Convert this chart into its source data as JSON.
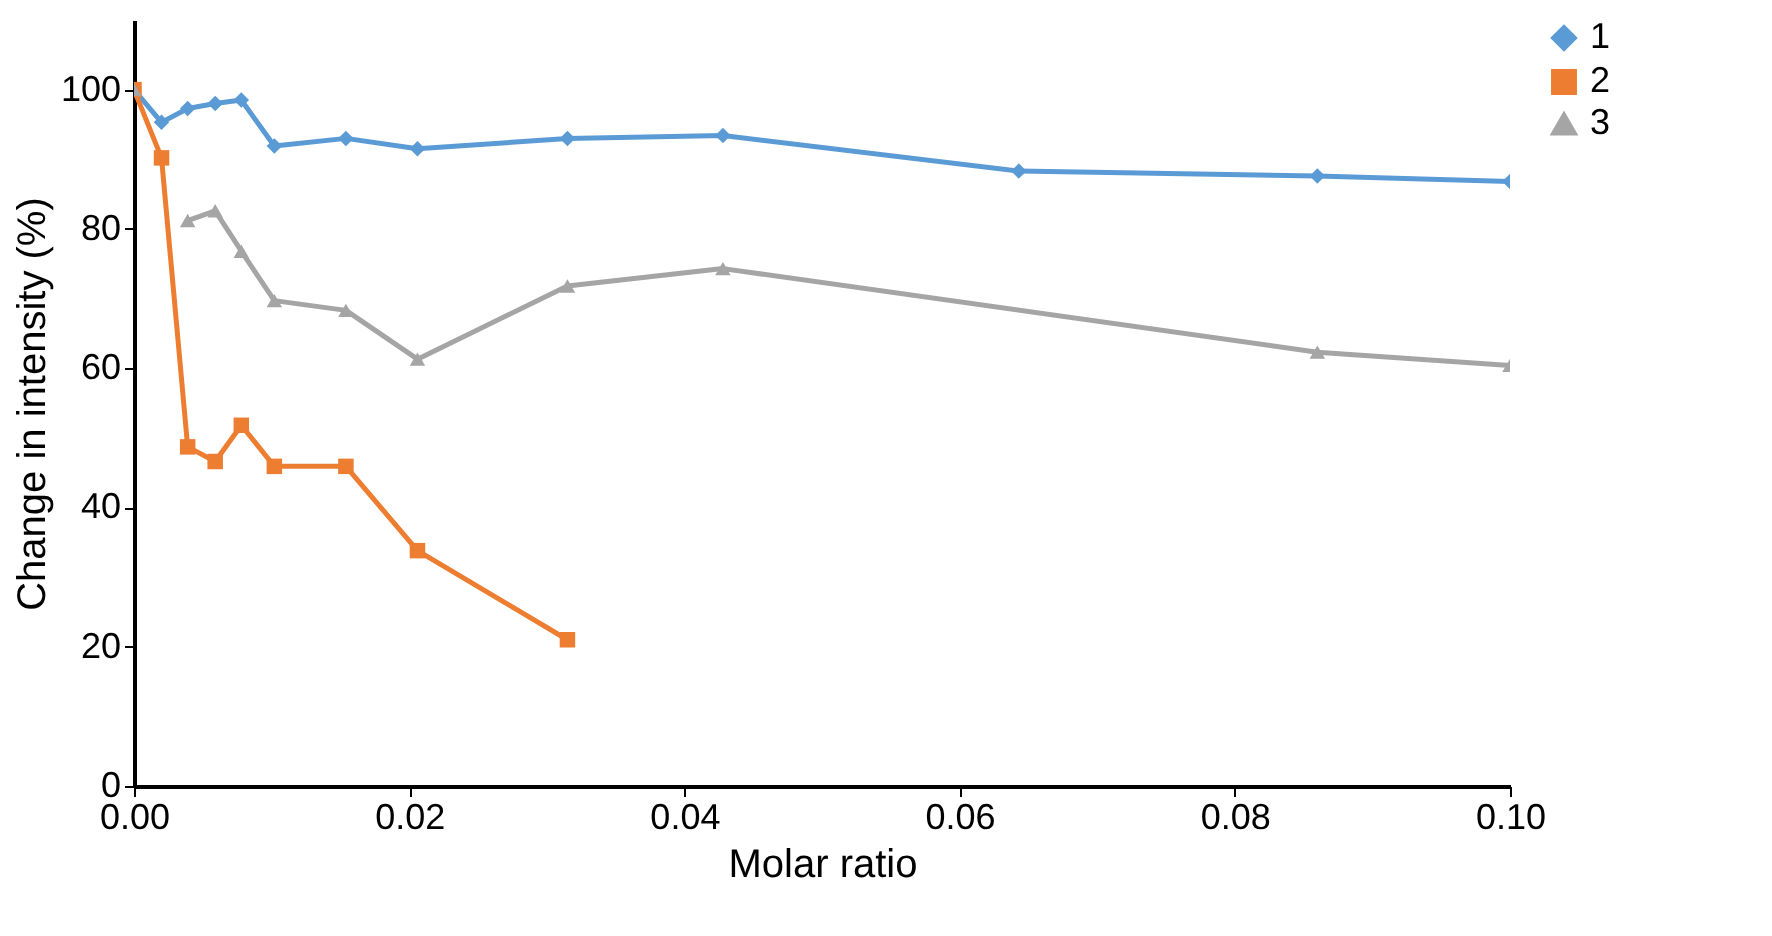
{
  "chart_data": {
    "type": "line",
    "xlabel": "Molar ratio",
    "ylabel": "Change in intensity (%)",
    "xlim": [
      0,
      0.1
    ],
    "xticks": [
      {
        "value": 0,
        "label": "0.00"
      },
      {
        "value": 0.02,
        "label": "0.02"
      },
      {
        "value": 0.04,
        "label": "0.04"
      },
      {
        "value": 0.06,
        "label": "0.06"
      },
      {
        "value": 0.08,
        "label": "0.08"
      },
      {
        "value": 0.1,
        "label": "0.10"
      }
    ],
    "ylim": [
      0,
      110
    ],
    "yticks": [
      0,
      20,
      40,
      60,
      80,
      100
    ],
    "grid": false,
    "legend": "right",
    "series": [
      {
        "name": "1",
        "color": "#5b9bd5",
        "marker": "diamond",
        "x": [
          0,
          0.002,
          0.0039,
          0.0059,
          0.0078,
          0.0102,
          0.0154,
          0.0206,
          0.0315,
          0.0428,
          0.0643,
          0.086,
          0.1
        ],
        "values": [
          100,
          95.3,
          97.3,
          98,
          98.5,
          91.9,
          93,
          91.5,
          93,
          93.4,
          88.3,
          87.6,
          86.8
        ]
      },
      {
        "name": "2",
        "color": "#ed7d31",
        "marker": "square",
        "x": [
          0,
          0.002,
          0.0039,
          0.0059,
          0.0078,
          0.0102,
          0.0154,
          0.0206,
          0.0315
        ],
        "values": [
          100,
          90.2,
          48.7,
          46.6,
          51.8,
          45.9,
          45.9,
          33.8,
          21
        ]
      },
      {
        "name": "3",
        "color": "#a5a5a5",
        "marker": "triangle",
        "x": [
          0,
          0.002,
          0.0039,
          0.0059,
          0.0078,
          0.0102,
          0.0154,
          0.0206,
          0.0315,
          0.0428,
          0.086,
          0.1
        ],
        "values": [
          100,
          null,
          81.2,
          82.6,
          76.8,
          69.7,
          68.3,
          61.3,
          71.8,
          74.3,
          62.3,
          60.4
        ]
      }
    ]
  }
}
